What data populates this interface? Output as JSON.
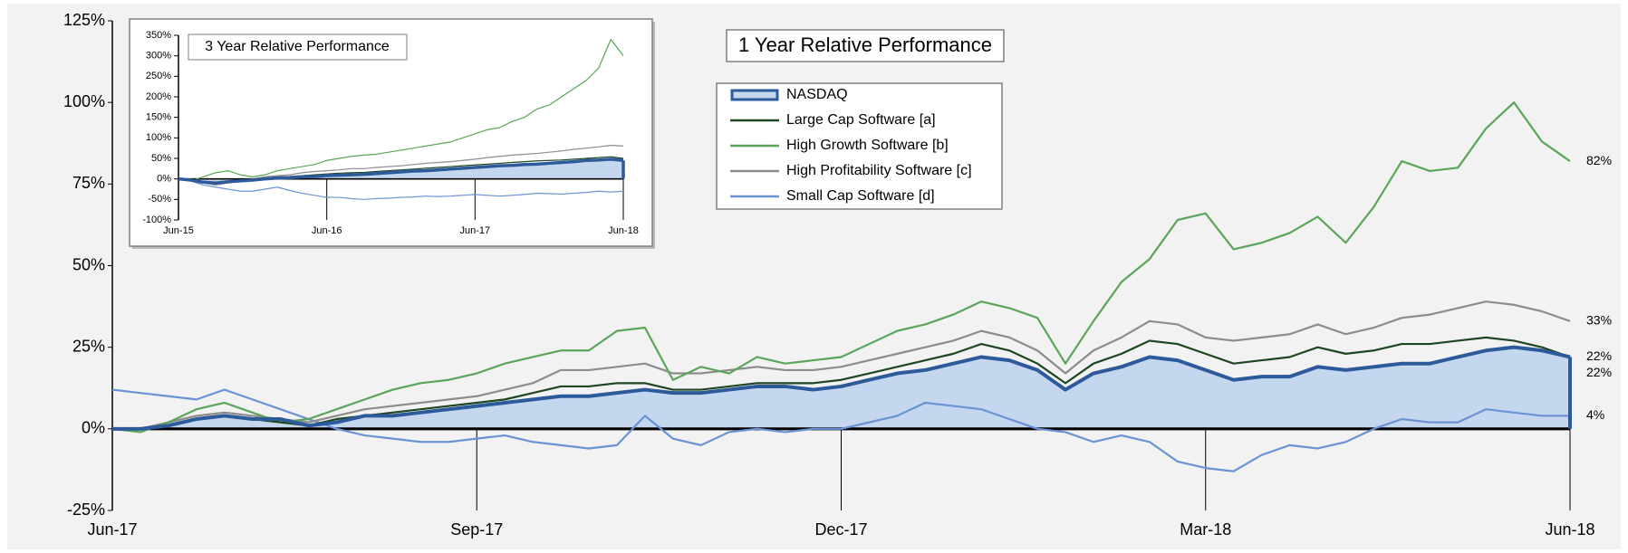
{
  "chart_data": [
    {
      "type": "line",
      "title": "1 Year Relative Performance",
      "categories": [
        "Jun-17",
        null,
        null,
        null,
        null,
        null,
        null,
        null,
        null,
        null,
        null,
        null,
        null,
        "Sep-17",
        null,
        null,
        null,
        null,
        null,
        null,
        null,
        null,
        null,
        null,
        null,
        null,
        "Dec-17",
        null,
        null,
        null,
        null,
        null,
        null,
        null,
        null,
        null,
        null,
        null,
        null,
        "Mar-18",
        null,
        null,
        null,
        null,
        null,
        null,
        null,
        null,
        null,
        null,
        null,
        null,
        "Jun-18"
      ],
      "ylim": [
        -25,
        125
      ],
      "yticks": [
        {
          "value": -25,
          "label": "-25%"
        },
        {
          "value": 0,
          "label": "0%"
        },
        {
          "value": 25,
          "label": "25%"
        },
        {
          "value": 50,
          "label": "50%"
        },
        {
          "value": 75,
          "label": "75%"
        },
        {
          "value": 100,
          "label": "100%"
        },
        {
          "value": 125,
          "label": "125%"
        }
      ],
      "legend": true,
      "grid": false,
      "series": [
        {
          "name": "NASDAQ",
          "color": "#2c5a9a",
          "fill": "#c5d7ef",
          "area": true,
          "end_label": "22%",
          "values": [
            0,
            0,
            1,
            3,
            4,
            3,
            3,
            1,
            2,
            4,
            4,
            5,
            6,
            7,
            8,
            9,
            10,
            10,
            11,
            12,
            11,
            11,
            12,
            13,
            13,
            12,
            13,
            15,
            17,
            18,
            20,
            22,
            21,
            18,
            12,
            17,
            19,
            22,
            21,
            18,
            15,
            16,
            16,
            19,
            18,
            19,
            20,
            20,
            22,
            24,
            25,
            24,
            22
          ]
        },
        {
          "name": "Large Cap Software [a]",
          "color": "#1e4620",
          "end_label": "22%",
          "values": [
            0,
            0,
            1,
            3,
            4,
            3,
            2,
            1,
            3,
            4,
            5,
            6,
            7,
            8,
            9,
            11,
            13,
            13,
            14,
            14,
            12,
            12,
            13,
            14,
            14,
            14,
            15,
            17,
            19,
            21,
            23,
            26,
            24,
            20,
            14,
            20,
            23,
            27,
            26,
            23,
            20,
            21,
            22,
            25,
            23,
            24,
            26,
            26,
            27,
            28,
            27,
            25,
            22
          ]
        },
        {
          "name": "High Growth Software [b]",
          "color": "#5aa55a",
          "end_label": "82%",
          "values": [
            0,
            -1,
            2,
            6,
            8,
            5,
            2,
            3,
            6,
            9,
            12,
            14,
            15,
            17,
            20,
            22,
            24,
            24,
            30,
            31,
            15,
            19,
            17,
            22,
            20,
            21,
            22,
            26,
            30,
            32,
            35,
            39,
            37,
            34,
            20,
            33,
            45,
            52,
            64,
            66,
            55,
            57,
            60,
            65,
            57,
            68,
            82,
            79,
            80,
            92,
            100,
            88,
            82
          ]
        },
        {
          "name": "High Profitability Software [c]",
          "color": "#8c8c8c",
          "end_label": "33%",
          "values": [
            0,
            0,
            2,
            4,
            5,
            4,
            3,
            2,
            4,
            6,
            7,
            8,
            9,
            10,
            12,
            14,
            18,
            18,
            19,
            20,
            17,
            17,
            18,
            19,
            18,
            18,
            19,
            21,
            23,
            25,
            27,
            30,
            28,
            24,
            17,
            24,
            28,
            33,
            32,
            28,
            27,
            28,
            29,
            32,
            29,
            31,
            34,
            35,
            37,
            39,
            38,
            36,
            33
          ]
        },
        {
          "name": "Small Cap Software [d]",
          "color": "#6a93d4",
          "end_label": "4%",
          "values": [
            12,
            11,
            10,
            9,
            12,
            9,
            6,
            3,
            0,
            -2,
            -3,
            -4,
            -4,
            -3,
            -2,
            -4,
            -5,
            -6,
            -5,
            4,
            -3,
            -5,
            -1,
            0,
            -1,
            0,
            0,
            2,
            4,
            8,
            7,
            6,
            3,
            0,
            -1,
            -4,
            -2,
            -4,
            -10,
            -12,
            -13,
            -8,
            -5,
            -6,
            -4,
            0,
            3,
            2,
            2,
            6,
            5,
            4,
            4
          ]
        }
      ]
    },
    {
      "type": "line",
      "title": "3 Year Relative Performance",
      "categories": [
        "Jun-15",
        null,
        null,
        null,
        null,
        null,
        null,
        null,
        null,
        null,
        null,
        null,
        "Jun-16",
        null,
        null,
        null,
        null,
        null,
        null,
        null,
        null,
        null,
        null,
        null,
        "Jun-17",
        null,
        null,
        null,
        null,
        null,
        null,
        null,
        null,
        null,
        null,
        null,
        "Jun-18"
      ],
      "ylim": [
        -100,
        350
      ],
      "yticks": [
        {
          "value": -100,
          "label": "-100%"
        },
        {
          "value": -50,
          "label": "-50%"
        },
        {
          "value": 0,
          "label": "0%"
        },
        {
          "value": 50,
          "label": "50%"
        },
        {
          "value": 100,
          "label": "100%"
        },
        {
          "value": 150,
          "label": "150%"
        },
        {
          "value": 200,
          "label": "200%"
        },
        {
          "value": 250,
          "label": "250%"
        },
        {
          "value": 300,
          "label": "300%"
        },
        {
          "value": 350,
          "label": "350%"
        }
      ],
      "legend": false,
      "grid": false,
      "series": [
        {
          "color": "#2c5a9a",
          "fill": "#c5d7ef",
          "area": true,
          "values": [
            0,
            -3,
            -8,
            -10,
            -7,
            -5,
            -3,
            0,
            2,
            3,
            5,
            6,
            8,
            9,
            10,
            11,
            13,
            15,
            17,
            19,
            20,
            22,
            24,
            26,
            28,
            30,
            32,
            33,
            35,
            36,
            38,
            40,
            42,
            45,
            46,
            48,
            45
          ]
        },
        {
          "color": "#1e4620",
          "values": [
            0,
            -5,
            -10,
            -12,
            -8,
            -5,
            0,
            2,
            5,
            6,
            8,
            10,
            12,
            14,
            15,
            16,
            18,
            20,
            22,
            24,
            26,
            28,
            30,
            32,
            34,
            36,
            38,
            40,
            42,
            44,
            45,
            46,
            48,
            50,
            52,
            54,
            50
          ]
        },
        {
          "color": "#5aa55a",
          "values": [
            0,
            -5,
            5,
            15,
            20,
            10,
            5,
            10,
            20,
            25,
            30,
            35,
            45,
            50,
            55,
            58,
            60,
            65,
            70,
            75,
            80,
            85,
            90,
            100,
            110,
            120,
            125,
            140,
            150,
            170,
            180,
            200,
            220,
            240,
            270,
            340,
            300
          ]
        },
        {
          "color": "#8c8c8c",
          "values": [
            0,
            -5,
            -10,
            -15,
            -10,
            -5,
            0,
            5,
            8,
            10,
            15,
            18,
            20,
            22,
            25,
            25,
            28,
            30,
            32,
            35,
            38,
            40,
            42,
            45,
            48,
            52,
            55,
            58,
            60,
            62,
            65,
            68,
            72,
            75,
            78,
            82,
            80
          ]
        },
        {
          "color": "#6a93d4",
          "values": [
            0,
            -5,
            -15,
            -20,
            -25,
            -30,
            -30,
            -25,
            -20,
            -28,
            -35,
            -40,
            -45,
            -45,
            -48,
            -50,
            -48,
            -47,
            -45,
            -44,
            -42,
            -43,
            -42,
            -40,
            -38,
            -40,
            -42,
            -40,
            -38,
            -35,
            -36,
            -37,
            -35,
            -33,
            -30,
            -32,
            -30
          ]
        }
      ]
    }
  ]
}
